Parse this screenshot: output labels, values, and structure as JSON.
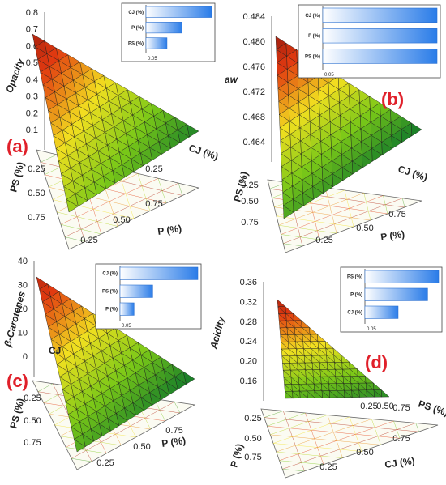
{
  "colors": {
    "surface_high": "#7a0c0c",
    "surface_mid_high": "#e23a10",
    "surface_mid": "#f2e020",
    "surface_mid_low": "#7ac818",
    "surface_low": "#127a2a",
    "panel_letter": "#e0202a",
    "bar_start": "#ffffff",
    "bar_end": "#2a7ce8"
  },
  "chart_data": [
    {
      "type": "mixture-response-surface",
      "panel": "(a)",
      "zlabel": "Opacity",
      "zticks": [
        "0.8",
        "0.7",
        "0.6",
        "0.5",
        "0.4",
        "0.3",
        "0.2",
        "0.1"
      ],
      "zlim": [
        0.1,
        0.8
      ],
      "axis_labels": {
        "a": "PS (%)",
        "b": "P (%)",
        "c": "CJ (%)"
      },
      "axis_ticks": {
        "a": [
          "0.25",
          "0.50",
          "0.75"
        ],
        "b": [
          "0.25",
          "0.50",
          "0.75"
        ],
        "c": [
          "0.25"
        ]
      },
      "vertex_values": {
        "PS": 0.72,
        "P": 0.12,
        "CJ": 0.32
      },
      "inset": {
        "factors": [
          "CJ (%)",
          "P (%)",
          "PS (%)"
        ],
        "values": [
          1.0,
          0.55,
          0.32
        ],
        "threshold_label": "0.05"
      }
    },
    {
      "type": "mixture-response-surface",
      "panel": "(b)",
      "zlabel": "aw",
      "zticks": [
        "0.484",
        "0.480",
        "0.476",
        "0.472",
        "0.468",
        "0.464"
      ],
      "zlim": [
        0.462,
        0.484
      ],
      "axis_labels": {
        "a": "PS (%)",
        "b": "P (%)",
        "c": "CJ (%)"
      },
      "axis_ticks": {
        "a": [
          "0.25",
          "0.50",
          "0.75"
        ],
        "b": [
          "0.25",
          "0.50",
          "0.75"
        ],
        "c": []
      },
      "vertex_values": {
        "PS": 0.482,
        "P": 0.462,
        "CJ": 0.465
      },
      "inset": {
        "factors": [
          "CJ (%)",
          "P (%)",
          "PS (%)"
        ],
        "values": [
          1.0,
          1.0,
          1.0
        ],
        "threshold_label": "0.05"
      }
    },
    {
      "type": "mixture-response-surface",
      "panel": "(c)",
      "zlabel": "β-Carotenes",
      "zticks": [
        "40",
        "30",
        "20",
        "10",
        "0"
      ],
      "zlim": [
        0,
        40
      ],
      "axis_labels": {
        "a": "PS (%)",
        "b": "P (%)",
        "c": "CJ"
      },
      "axis_ticks": {
        "a": [
          "0.25",
          "0.50",
          "0.75"
        ],
        "b": [
          "0.25",
          "0.50",
          "0.75"
        ],
        "c": []
      },
      "vertex_values": {
        "CJ": 34,
        "P": 0,
        "PS": 6
      },
      "inset": {
        "factors": [
          "CJ (%)",
          "PS (%)",
          "P (%)"
        ],
        "values": [
          1.0,
          0.42,
          0.18
        ],
        "threshold_label": "0.05"
      }
    },
    {
      "type": "mixture-response-surface",
      "panel": "(d)",
      "zlabel": "Acidity",
      "zticks": [
        "0.36",
        "0.32",
        "0.28",
        "0.24",
        "0.20",
        "0.16"
      ],
      "zlim": [
        0.14,
        0.36
      ],
      "axis_labels": {
        "a": "P (%)",
        "b": "CJ (%)",
        "c": "PS (%)"
      },
      "axis_ticks": {
        "a": [
          "0.25",
          "0.50",
          "0.75"
        ],
        "b": [
          "0.25",
          "0.50",
          "0.75"
        ],
        "c": [
          "0.25",
          "0.50",
          "0.75"
        ]
      },
      "vertex_values": {
        "P": 0.33,
        "CJ": 0.15,
        "PS": 0.18
      },
      "inset": {
        "factors": [
          "PS (%)",
          "P (%)",
          "CJ (%)"
        ],
        "values": [
          1.0,
          0.85,
          0.45
        ],
        "threshold_label": "0.05"
      }
    }
  ]
}
